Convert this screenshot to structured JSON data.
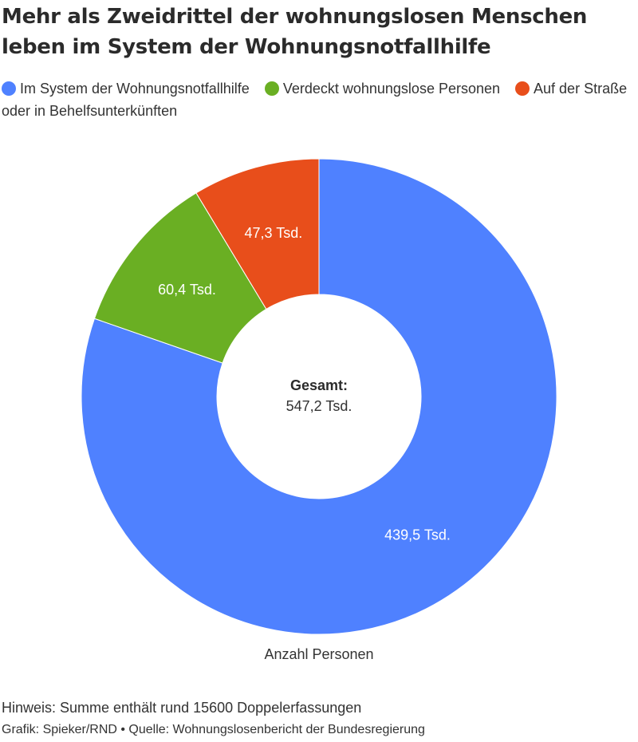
{
  "chart_data": {
    "type": "pie",
    "title": "Mehr als Zweidrittel der wohnungslosen Menschen leben im System der Wohnungsnotfallhilfe",
    "xlabel": "Anzahl Personen",
    "legend": "top",
    "series": [
      {
        "name": "Im System der Wohnungsnotfallhilfe",
        "value": 439.5,
        "label": "439,5 Tsd.",
        "color": "#4f81ff"
      },
      {
        "name": "Verdeckt wohnungslose Personen",
        "value": 60.4,
        "label": "60,4 Tsd.",
        "color": "#6aaf23"
      },
      {
        "name": "Auf der Straße oder in Behelfsunterkünften",
        "value": 47.3,
        "label": "47,3 Tsd.",
        "color": "#e84e1b"
      }
    ],
    "center": {
      "title": "Gesamt:",
      "value": "547,2 Tsd."
    }
  },
  "footer": {
    "note": "Hinweis: Summe enthält rund 15600 Doppelerfassungen",
    "source": "Grafik: Spieker/RND • Quelle: Wohnungslosenbericht der Bundesregierung"
  }
}
